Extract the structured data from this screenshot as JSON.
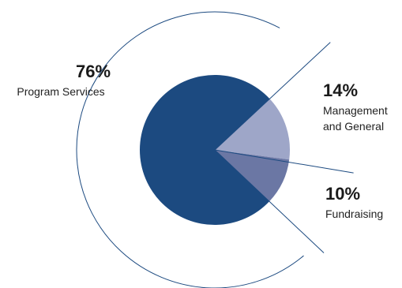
{
  "chart_data": {
    "type": "pie",
    "title": "",
    "slices": [
      {
        "percent_label": "76%",
        "label_lines": [
          "Program Services"
        ],
        "value": 76,
        "color": "#1c4a80"
      },
      {
        "percent_label": "14%",
        "label_lines": [
          "Management",
          "and General"
        ],
        "value": 14,
        "color": "#9ea6c8"
      },
      {
        "percent_label": "10%",
        "label_lines": [
          "Fundraising"
        ],
        "value": 10,
        "color": "#6b77a4"
      }
    ],
    "legend": "none",
    "outer_ring_color": "#1c4a80"
  }
}
